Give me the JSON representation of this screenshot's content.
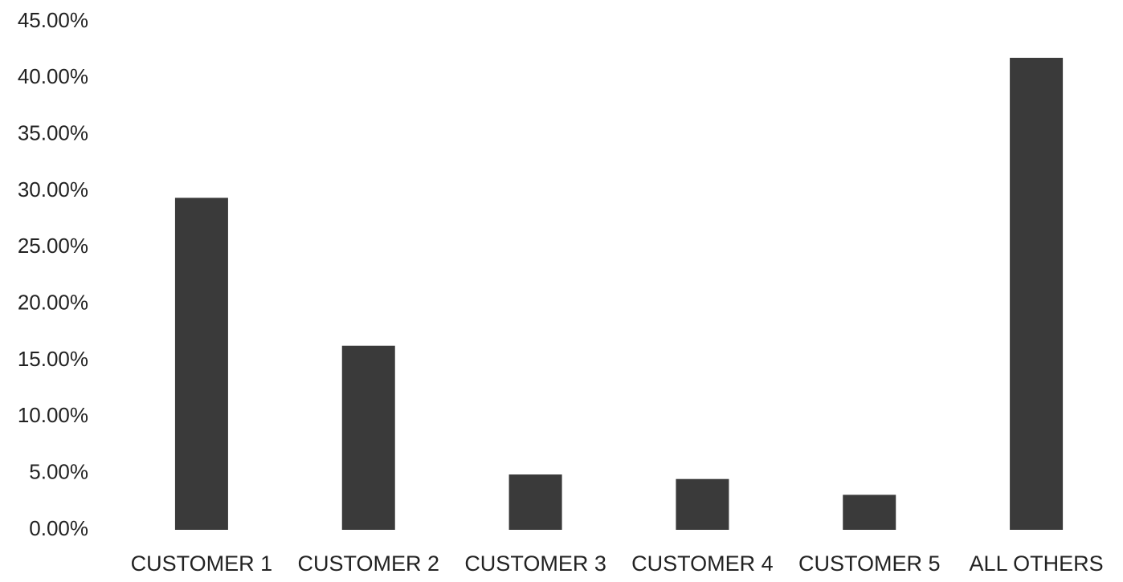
{
  "chart_data": {
    "type": "bar",
    "categories": [
      "CUSTOMER 1",
      "CUSTOMER 2",
      "CUSTOMER 3",
      "CUSTOMER 4",
      "CUSTOMER 5",
      "ALL OTHERS"
    ],
    "values": [
      29.4,
      16.3,
      4.9,
      4.5,
      3.1,
      41.8
    ],
    "color": "#3a3a3a",
    "ylim": [
      0,
      45
    ],
    "yticks": [
      {
        "value": 0,
        "label": "0.00%"
      },
      {
        "value": 5,
        "label": "5.00%"
      },
      {
        "value": 10,
        "label": "10.00%"
      },
      {
        "value": 15,
        "label": "15.00%"
      },
      {
        "value": 20,
        "label": "20.00%"
      },
      {
        "value": 25,
        "label": "25.00%"
      },
      {
        "value": 30,
        "label": "30.00%"
      },
      {
        "value": 35,
        "label": "35.00%"
      },
      {
        "value": 40,
        "label": "40.00%"
      },
      {
        "value": 45,
        "label": "45.00%"
      }
    ],
    "grid": false
  }
}
